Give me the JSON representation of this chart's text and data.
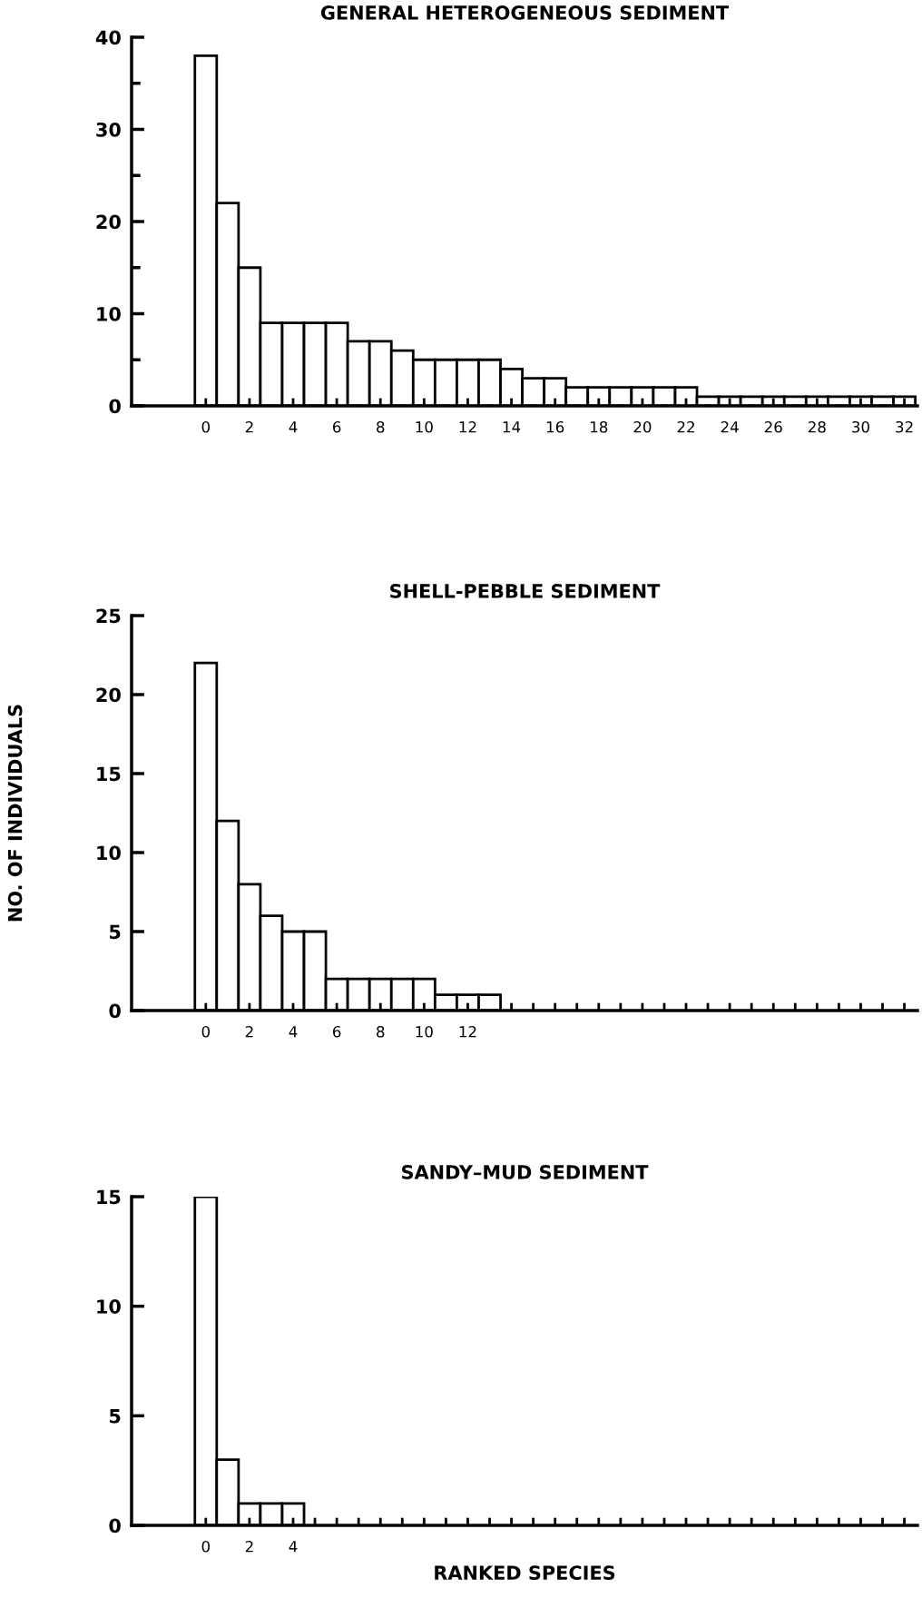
{
  "chart_data": [
    {
      "type": "bar",
      "title": "GENERAL HETEROGENEOUS SEDIMENT",
      "color": "#ffffff",
      "x": [
        0,
        1,
        2,
        3,
        4,
        5,
        6,
        7,
        8,
        9,
        10,
        11,
        12,
        13,
        14,
        15,
        16,
        17,
        18,
        19,
        20,
        21,
        22,
        23,
        24,
        25,
        26,
        27,
        28,
        29,
        30,
        31,
        32
      ],
      "values": [
        38,
        22,
        15,
        9,
        9,
        9,
        9,
        7,
        7,
        6,
        5,
        5,
        5,
        5,
        4,
        3,
        3,
        2,
        2,
        2,
        2,
        2,
        2,
        1,
        1,
        1,
        1,
        1,
        1,
        1,
        1,
        1,
        1
      ],
      "xlim": [
        -3.4,
        32.6
      ],
      "xticks": [
        0,
        2,
        4,
        6,
        8,
        10,
        12,
        14,
        16,
        18,
        20,
        22,
        24,
        26,
        28,
        30,
        32
      ],
      "ylim": [
        0,
        40
      ],
      "yticks": [
        0,
        {
          "value": 5,
          "label": null
        },
        10,
        {
          "value": 15,
          "label": null
        },
        20,
        {
          "value": 25,
          "label": null
        },
        30,
        {
          "value": 35,
          "label": null
        },
        40
      ],
      "grid": false
    },
    {
      "type": "bar",
      "title": "SHELL-PEBBLE SEDIMENT",
      "ylabel": "NO. OF INDIVIDUALS",
      "color": "#ffffff",
      "x": [
        0,
        1,
        2,
        3,
        4,
        5,
        6,
        7,
        8,
        9,
        10,
        11,
        12,
        13
      ],
      "values": [
        22,
        12,
        8,
        6,
        5,
        5,
        2,
        2,
        2,
        2,
        2,
        1,
        1,
        1
      ],
      "xlim": [
        -3.4,
        32.6
      ],
      "xticks": [
        0,
        2,
        4,
        6,
        8,
        10,
        12,
        {
          "value": 14,
          "label": null
        },
        {
          "value": 15,
          "label": null
        },
        {
          "value": 16,
          "label": null
        },
        {
          "value": 17,
          "label": null
        },
        {
          "value": 18,
          "label": null
        },
        {
          "value": 19,
          "label": null
        },
        {
          "value": 20,
          "label": null
        },
        {
          "value": 21,
          "label": null
        },
        {
          "value": 22,
          "label": null
        },
        {
          "value": 23,
          "label": null
        },
        {
          "value": 24,
          "label": null
        },
        {
          "value": 25,
          "label": null
        },
        {
          "value": 26,
          "label": null
        },
        {
          "value": 27,
          "label": null
        },
        {
          "value": 28,
          "label": null
        },
        {
          "value": 29,
          "label": null
        },
        {
          "value": 30,
          "label": null
        },
        {
          "value": 31,
          "label": null
        },
        {
          "value": 32,
          "label": null
        }
      ],
      "ylim": [
        0,
        25
      ],
      "yticks": [
        0,
        5,
        10,
        15,
        20,
        25
      ],
      "grid": false
    },
    {
      "type": "bar",
      "title": "SANDY–MUD SEDIMENT",
      "xlabel": "RANKED SPECIES",
      "color": "#ffffff",
      "x": [
        0,
        1,
        2,
        3,
        4
      ],
      "values": [
        15,
        3,
        1,
        1,
        1
      ],
      "xlim": [
        -3.4,
        32.6
      ],
      "xticks": [
        0,
        2,
        4,
        {
          "value": 5,
          "label": null
        },
        {
          "value": 6,
          "label": null
        },
        {
          "value": 7,
          "label": null
        },
        {
          "value": 8,
          "label": null
        },
        {
          "value": 9,
          "label": null
        },
        {
          "value": 10,
          "label": null
        },
        {
          "value": 11,
          "label": null
        },
        {
          "value": 12,
          "label": null
        },
        {
          "value": 13,
          "label": null
        },
        {
          "value": 14,
          "label": null
        },
        {
          "value": 15,
          "label": null
        },
        {
          "value": 16,
          "label": null
        },
        {
          "value": 17,
          "label": null
        },
        {
          "value": 18,
          "label": null
        },
        {
          "value": 19,
          "label": null
        },
        {
          "value": 20,
          "label": null
        },
        {
          "value": 21,
          "label": null
        },
        {
          "value": 22,
          "label": null
        },
        {
          "value": 23,
          "label": null
        },
        {
          "value": 24,
          "label": null
        },
        {
          "value": 25,
          "label": null
        },
        {
          "value": 26,
          "label": null
        },
        {
          "value": 27,
          "label": null
        },
        {
          "value": 28,
          "label": null
        },
        {
          "value": 29,
          "label": null
        },
        {
          "value": 30,
          "label": null
        },
        {
          "value": 31,
          "label": null
        },
        {
          "value": 32,
          "label": null
        }
      ],
      "ylim": [
        0,
        15
      ],
      "yticks": [
        0,
        5,
        10,
        15
      ],
      "grid": false
    }
  ]
}
